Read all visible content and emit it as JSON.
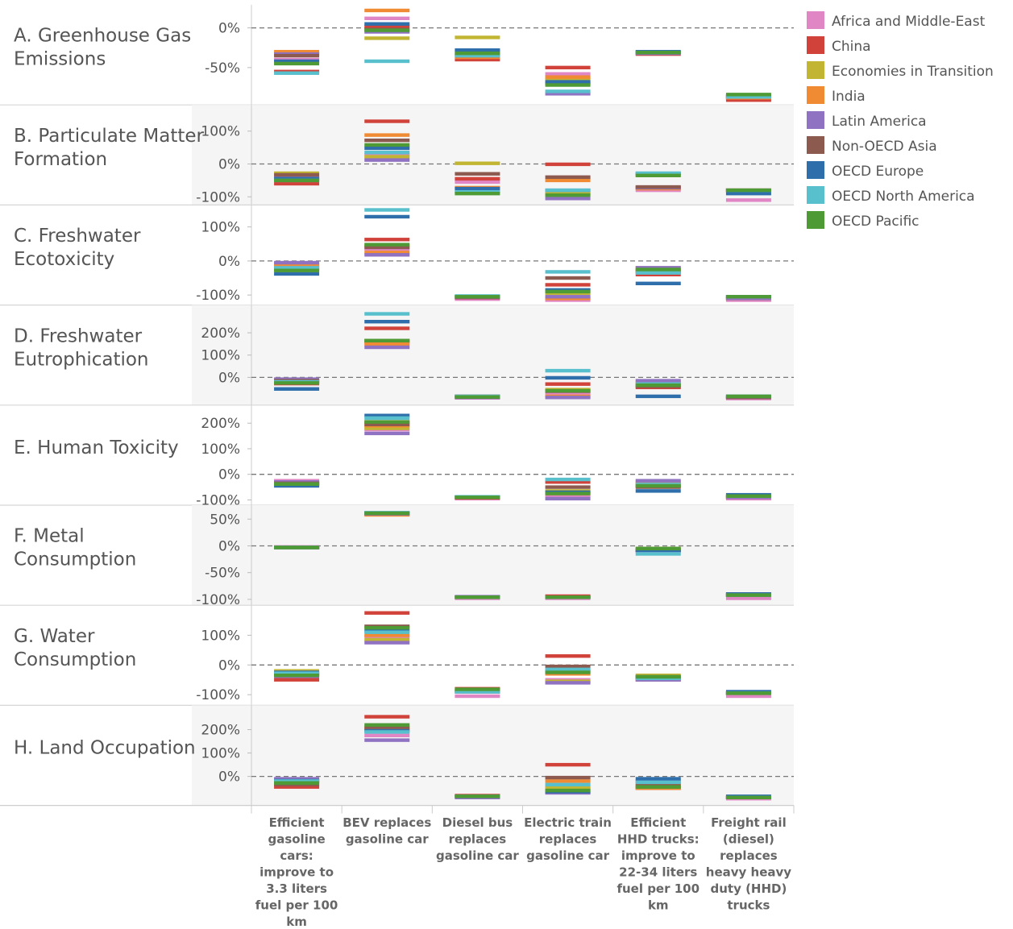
{
  "chart_data": {
    "type": "bar",
    "unit": "%",
    "legend_position": "top-right",
    "grid": false,
    "colors": {
      "Africa and Middle-East": "#e086c4",
      "China": "#d1433a",
      "Economies in Transition": "#c2b532",
      "India": "#f08a33",
      "Latin America": "#8f72c2",
      "Non-OECD Asia": "#8c5a4e",
      "OECD Europe": "#2e6eab",
      "OECD North America": "#58bfcd",
      "OECD Pacific": "#4e9b35"
    },
    "series": [
      {
        "name": "Africa and Middle-East"
      },
      {
        "name": "China"
      },
      {
        "name": "Economies in Transition"
      },
      {
        "name": "India"
      },
      {
        "name": "Latin America"
      },
      {
        "name": "Non-OECD Asia"
      },
      {
        "name": "OECD Europe"
      },
      {
        "name": "OECD North America"
      },
      {
        "name": "OECD Pacific"
      }
    ],
    "categories": [
      "Efficient gasoline cars: improve to 3.3 liters fuel per 100 km",
      "BEV replaces gasoline car",
      "Diesel bus replaces gasoline car",
      "Electric train replaces gasoline car",
      "Efficient HHD trucks: improve to 22-34 liters fuel per 100 km",
      "Freight rail (diesel) replaces heavy heavy duty (HHD) trucks"
    ],
    "category_lines": [
      [
        "Efficient",
        "gasoline",
        "cars:",
        "improve to",
        "3.3 liters",
        "fuel per 100",
        "km"
      ],
      [
        "BEV replaces",
        "gasoline car"
      ],
      [
        "Diesel bus",
        "replaces",
        "gasoline car"
      ],
      [
        "Electric train",
        "replaces",
        "gasoline car"
      ],
      [
        "Efficient",
        "HHD trucks:",
        "improve to",
        "22-34 liters",
        "fuel per 100",
        "km"
      ],
      [
        "Freight rail",
        "(diesel)",
        "replaces",
        "heavy heavy",
        "duty (HHD)",
        "trucks"
      ]
    ],
    "panels": [
      {
        "label_lines": [
          "A. Greenhouse Gas",
          "Emissions"
        ],
        "ylim": [
          -93,
          25
        ],
        "ticks": [
          0,
          -50
        ],
        "tick_labels": [
          "0%",
          "-50%"
        ],
        "values": [
          [
            -40,
            -55,
            -32,
            -30,
            -33,
            -35,
            -42,
            -57,
            -45
          ],
          [
            12,
            2,
            -13,
            22,
            -5,
            -2,
            5,
            -42,
            -3
          ],
          [
            -33,
            -40,
            -12,
            -37,
            -30,
            -35,
            -28,
            -35,
            -32
          ],
          [
            -58,
            -50,
            -65,
            -62,
            -83,
            -70,
            -68,
            -80,
            -72
          ],
          [
            -31,
            -33,
            -31,
            -31,
            -32,
            -31,
            -30,
            -31,
            -31
          ],
          [
            -89,
            -91,
            -88,
            -88,
            -87,
            -86,
            -86,
            -87,
            -84
          ]
        ]
      },
      {
        "label_lines": [
          "B. Particulate Matter",
          "Formation"
        ],
        "ylim": [
          -115,
          170
        ],
        "ticks": [
          100,
          0,
          -100
        ],
        "tick_labels": [
          "100%",
          "0%",
          "-100%"
        ],
        "values": [
          [
            -40,
            -60,
            -28,
            -48,
            -42,
            -33,
            -45,
            -50,
            -50
          ],
          [
            28,
            130,
            22,
            88,
            12,
            72,
            48,
            35,
            58
          ],
          [
            -55,
            -45,
            2,
            -72,
            -85,
            -30,
            -75,
            -85,
            -90
          ],
          [
            -88,
            -1,
            -90,
            -50,
            -105,
            -40,
            -80,
            -80,
            -95
          ],
          [
            -80,
            -72,
            -35,
            -75,
            -72,
            -70,
            -30,
            -28,
            -35
          ],
          [
            -110,
            -80,
            -80,
            -80,
            -80,
            -80,
            -90,
            -80,
            -80
          ]
        ]
      },
      {
        "label_lines": [
          "C. Freshwater",
          "Ecotoxicity"
        ],
        "ylim": [
          -120,
          155
        ],
        "ticks": [
          100,
          0,
          -100
        ],
        "tick_labels": [
          "100%",
          "0%",
          "-100%"
        ],
        "values": [
          [
            -12,
            -20,
            -8,
            -15,
            -5,
            -25,
            -38,
            -20,
            -28
          ],
          [
            35,
            63,
            45,
            25,
            18,
            40,
            130,
            150,
            48
          ],
          [
            -112,
            -108,
            -105,
            -105,
            -107,
            -106,
            -105,
            -103,
            -105
          ],
          [
            -115,
            -70,
            -95,
            -110,
            -105,
            -50,
            -85,
            -32,
            -90
          ],
          [
            -30,
            -40,
            -20,
            -30,
            -20,
            -30,
            -66,
            -35,
            -25
          ],
          [
            -115,
            -110,
            -110,
            -110,
            -110,
            -105,
            -105,
            -105,
            -105
          ]
        ]
      },
      {
        "label_lines": [
          "D. Freshwater",
          "Eutrophication"
        ],
        "ylim": [
          -110,
          310
        ],
        "ticks": [
          200,
          100,
          0
        ],
        "tick_labels": [
          "200%",
          "100%",
          "0%"
        ],
        "values": [
          [
            -12,
            -28,
            -18,
            -22,
            -8,
            -15,
            -52,
            -20,
            -25
          ],
          [
            155,
            220,
            162,
            150,
            135,
            165,
            250,
            285,
            165
          ],
          [
            -92,
            -85,
            -88,
            -90,
            -90,
            -85,
            -88,
            -85,
            -88
          ],
          [
            -72,
            -30,
            -55,
            -85,
            -90,
            -62,
            -2,
            30,
            -60
          ],
          [
            -30,
            -45,
            -22,
            -28,
            -15,
            -40,
            -85,
            -30,
            -35
          ],
          [
            -95,
            -90,
            -90,
            -90,
            -90,
            -90,
            -85,
            -85,
            -85
          ]
        ]
      },
      {
        "label_lines": [
          "E. Human Toxicity"
        ],
        "ylim": [
          -108,
          258
        ],
        "ticks": [
          200,
          100,
          0,
          -100
        ],
        "tick_labels": [
          "200%",
          "100%",
          "0%",
          "-100%"
        ],
        "values": [
          [
            -25,
            -40,
            -32,
            -35,
            -30,
            -35,
            -45,
            -38,
            -38
          ],
          [
            175,
            205,
            180,
            190,
            160,
            195,
            230,
            220,
            205
          ],
          [
            -95,
            -92,
            -90,
            -90,
            -90,
            -90,
            -88,
            -88,
            -90
          ],
          [
            -85,
            -30,
            -65,
            -75,
            -95,
            -50,
            -70,
            -20,
            -75
          ],
          [
            -30,
            -45,
            -35,
            -40,
            -25,
            -50,
            -65,
            -40,
            -45
          ],
          [
            -95,
            -90,
            -90,
            -90,
            -90,
            -85,
            -80,
            -85,
            -85
          ]
        ]
      },
      {
        "label_lines": [
          "F. Metal",
          "Consumption"
        ],
        "ylim": [
          -105,
          70
        ],
        "ticks": [
          50,
          0,
          -50,
          -100
        ],
        "tick_labels": [
          "50%",
          "0%",
          "-50%",
          "-100%"
        ],
        "values": [
          [
            -2,
            -3,
            -3,
            -3,
            -3,
            -3,
            -3,
            -3,
            -3
          ],
          [
            62,
            60,
            61,
            58,
            60,
            61,
            61,
            62,
            61
          ],
          [
            -98,
            -96,
            -96,
            -96,
            -95,
            -96,
            -96,
            -96,
            -96
          ],
          [
            -98,
            -94,
            -96,
            -96,
            -96,
            -96,
            -96,
            -96,
            -96
          ],
          [
            -8,
            -8,
            -5,
            -8,
            -10,
            -8,
            -8,
            -15,
            -5
          ],
          [
            -98,
            -90,
            -92,
            -92,
            -92,
            -92,
            -90,
            -92,
            -92
          ]
        ]
      },
      {
        "label_lines": [
          "G. Water",
          "Consumption"
        ],
        "ylim": [
          -125,
          190
        ],
        "ticks": [
          100,
          0,
          -100
        ],
        "tick_labels": [
          "100%",
          "0%",
          "-100%"
        ],
        "values": [
          [
            -30,
            -50,
            -20,
            -35,
            -38,
            -30,
            -25,
            -28,
            -35
          ],
          [
            95,
            175,
            85,
            100,
            75,
            130,
            115,
            110,
            125
          ],
          [
            -105,
            -80,
            -90,
            -90,
            -90,
            -85,
            -90,
            -90,
            -82
          ],
          [
            -50,
            30,
            -55,
            -30,
            -60,
            -5,
            -20,
            -15,
            -25
          ],
          [
            -45,
            -50,
            -35,
            -40,
            -50,
            -42,
            -40,
            -45,
            -40
          ],
          [
            -105,
            -95,
            -95,
            -95,
            -95,
            -95,
            -90,
            -95,
            -95
          ]
        ]
      },
      {
        "label_lines": [
          "H. Land Occupation"
        ],
        "ylim": [
          -110,
          290
        ],
        "ticks": [
          200,
          100,
          0
        ],
        "tick_labels": [
          "200%",
          "100%",
          "0%"
        ],
        "values": [
          [
            -15,
            -45,
            -20,
            -25,
            -10,
            -35,
            -18,
            -20,
            -28
          ],
          [
            175,
            255,
            205,
            200,
            155,
            210,
            195,
            190,
            220
          ],
          [
            -90,
            -82,
            -85,
            -85,
            -90,
            -85,
            -85,
            -85,
            -85
          ],
          [
            -45,
            50,
            -50,
            -20,
            -70,
            -5,
            -65,
            -35,
            -60
          ],
          [
            -30,
            -50,
            -35,
            -50,
            -20,
            -40,
            -10,
            -25,
            -45
          ],
          [
            -95,
            -90,
            -90,
            -90,
            -90,
            -90,
            -85,
            -90,
            -90
          ]
        ]
      }
    ]
  }
}
